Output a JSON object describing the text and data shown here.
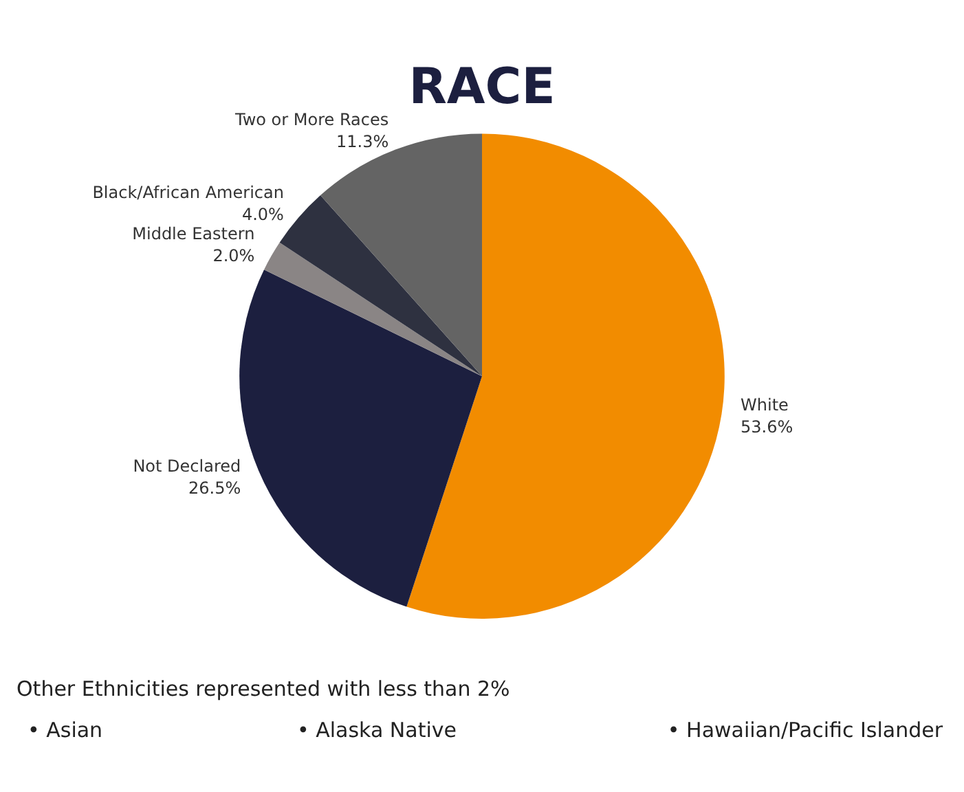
{
  "chart_data": {
    "type": "pie",
    "title": "RACE",
    "categories": [
      "White",
      "Not Declared",
      "Middle Eastern",
      "Black/African American",
      "Two or More Races"
    ],
    "values": [
      53.6,
      26.5,
      2.0,
      4.0,
      11.3
    ],
    "value_labels": [
      "53.6%",
      "26.5%",
      "2.0%",
      "4.0%",
      "11.3%"
    ],
    "colors": [
      "#f28c00",
      "#1c1f3f",
      "#8a8585",
      "#2e3140",
      "#646464"
    ],
    "annotations": [
      "Other Ethnicities represented with less than 2%",
      "• Asian",
      "• Alaska Native",
      "• Hawaiian/Pacific Islander"
    ]
  }
}
